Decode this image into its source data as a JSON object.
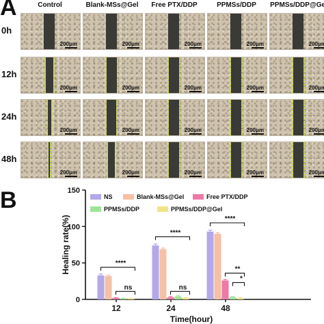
{
  "panel_a": {
    "letter": "A",
    "columns": [
      "Control",
      "Blank-MSs@Gel",
      "Free PTX/DDP",
      "PPMSs/DDP",
      "PPMSs/DDP@Gel"
    ],
    "rows": [
      "0h",
      "12h",
      "24h",
      "48h"
    ],
    "scale_label": "200μm",
    "wound_open_fraction": [
      [
        1.0,
        1.0,
        1.0,
        1.0,
        1.0
      ],
      [
        0.7,
        0.95,
        0.95,
        0.95,
        0.95
      ],
      [
        0.3,
        0.85,
        0.95,
        0.95,
        0.95
      ],
      [
        0.05,
        0.6,
        0.95,
        0.95,
        0.95
      ]
    ]
  },
  "panel_b": {
    "letter": "B"
  },
  "colors": {
    "NS": "#b3a8e8",
    "Blank-MSs@Gel": "#f6c0a6",
    "Free PTX/DDP": "#ee7aa8",
    "PPMSs/DDP": "#9fe39a",
    "PPMSs/DDP@Gel": "#f2e38a"
  },
  "chart_data": {
    "type": "bar",
    "xlabel": "Time(hour)",
    "ylabel": "Healing rate(%)",
    "ylim": [
      0,
      150
    ],
    "yticks": [
      0,
      50,
      100,
      150
    ],
    "categories": [
      "12",
      "24",
      "48"
    ],
    "legend_position": "top-left",
    "series": [
      {
        "name": "NS",
        "values": [
          33,
          74,
          93
        ]
      },
      {
        "name": "Blank-MSs@Gel",
        "values": [
          32,
          69,
          90
        ]
      },
      {
        "name": "Free PTX/DDP",
        "values": [
          2,
          3,
          26
        ]
      },
      {
        "name": "PPMSs/DDP",
        "values": [
          1,
          4,
          3
        ]
      },
      {
        "name": "PPMSs/DDP@Gel",
        "values": [
          1,
          2,
          2
        ]
      }
    ],
    "errors": [
      [
        2,
        2,
        2
      ],
      [
        1.5,
        1.5,
        1.5
      ],
      [
        0.5,
        1,
        1.5
      ],
      [
        0.5,
        1,
        1
      ],
      [
        0.5,
        0.5,
        0.5
      ]
    ],
    "annotations": [
      {
        "category": "12",
        "from": 0,
        "to": 4,
        "value": 44,
        "text": "****"
      },
      {
        "category": "12",
        "from": 2,
        "to": 4,
        "value": 11,
        "text": "ns"
      },
      {
        "category": "24",
        "from": 0,
        "to": 4,
        "value": 86,
        "text": "****"
      },
      {
        "category": "24",
        "from": 2,
        "to": 4,
        "value": 11,
        "text": "ns"
      },
      {
        "category": "48",
        "from": 0,
        "to": 4,
        "value": 105,
        "text": "****"
      },
      {
        "category": "48",
        "from": 2,
        "to": 4,
        "value": 36,
        "text": "**"
      },
      {
        "category": "48",
        "from": 3,
        "to": 4,
        "value": 23,
        "text": "*"
      }
    ]
  }
}
